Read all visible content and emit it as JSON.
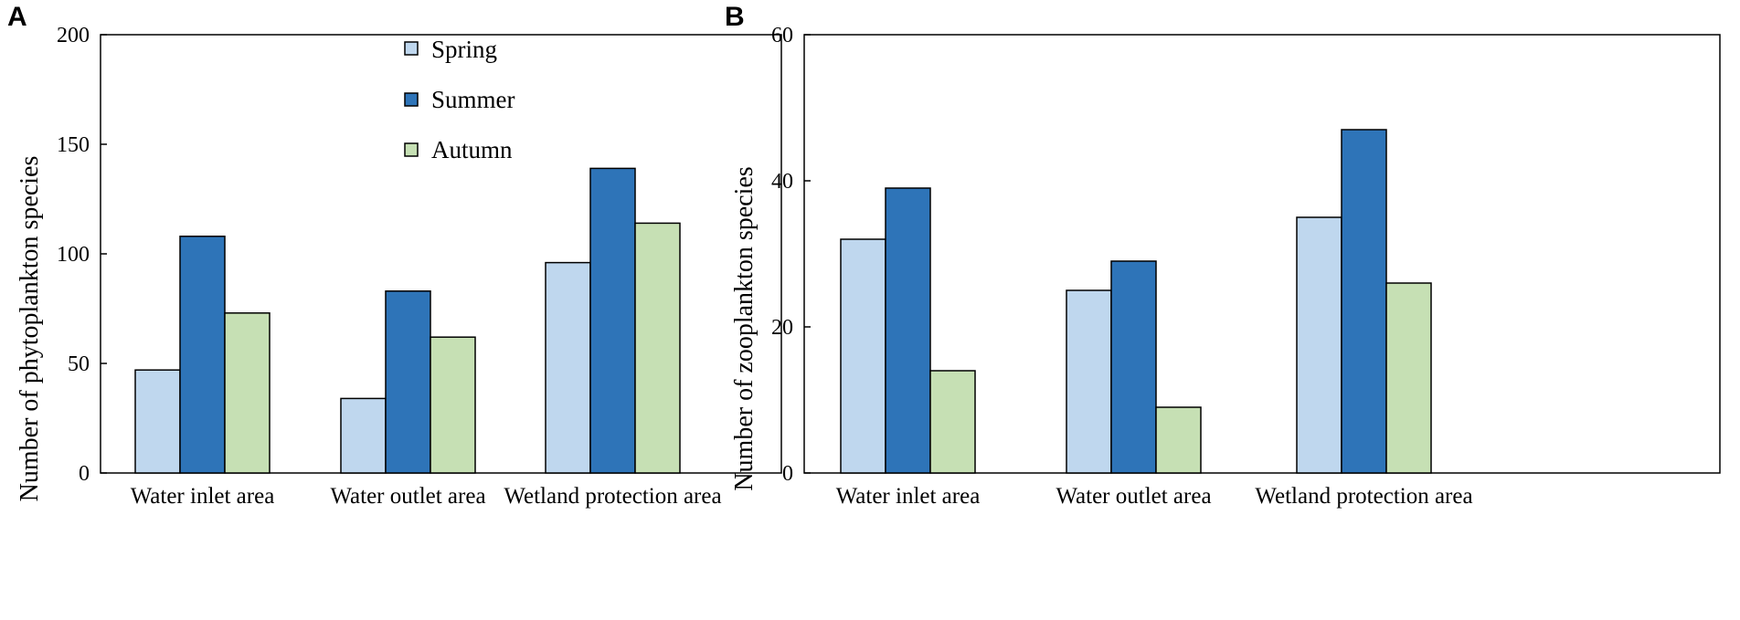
{
  "legend": {
    "entries": [
      "Spring",
      "Summer",
      "Autumn"
    ]
  },
  "colors": {
    "Spring": "#bfd7ee",
    "Summer": "#2e74b8",
    "Autumn": "#c6e0b4"
  },
  "chart_data": [
    {
      "panel": "A",
      "type": "bar",
      "title": "",
      "xlabel": "",
      "ylabel": "Number of phytoplankton species",
      "categories": [
        "Water inlet area",
        "Water outlet area",
        "Wetland protection area"
      ],
      "series": [
        {
          "name": "Spring",
          "values": [
            47,
            34,
            96
          ]
        },
        {
          "name": "Summer",
          "values": [
            108,
            83,
            139
          ]
        },
        {
          "name": "Autumn",
          "values": [
            73,
            62,
            114
          ]
        }
      ],
      "ylim": [
        0,
        200
      ],
      "yticks": [
        0,
        50,
        100,
        150,
        200
      ],
      "legend_position": "top-center",
      "grid": false
    },
    {
      "panel": "B",
      "type": "bar",
      "title": "",
      "xlabel": "",
      "ylabel": "Number of zooplankton species",
      "categories": [
        "Water inlet area",
        "Water outlet area",
        "Wetland protection area"
      ],
      "series": [
        {
          "name": "Spring",
          "values": [
            32,
            25,
            35
          ]
        },
        {
          "name": "Summer",
          "values": [
            39,
            29,
            47
          ]
        },
        {
          "name": "Autumn",
          "values": [
            14,
            9,
            26
          ]
        }
      ],
      "ylim": [
        0,
        60
      ],
      "yticks": [
        0,
        20,
        40,
        60
      ],
      "legend_position": "none",
      "grid": false
    }
  ]
}
